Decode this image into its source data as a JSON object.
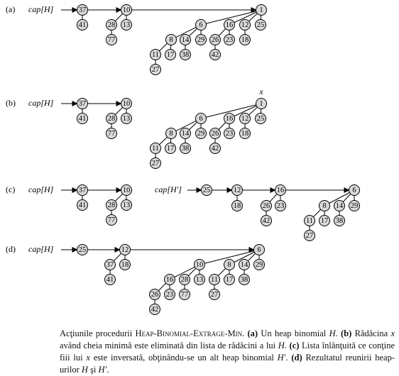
{
  "panels": [
    {
      "label": "(a)",
      "pointers": [
        "cap[H]"
      ],
      "keys": [
        37,
        41,
        10,
        28,
        13,
        77,
        1,
        6,
        16,
        12,
        25,
        8,
        14,
        29,
        26,
        23,
        18,
        11,
        17,
        38,
        42,
        27
      ]
    },
    {
      "label": "(b)",
      "pointers": [
        "cap[H]"
      ],
      "marker": "x",
      "keys": [
        37,
        41,
        10,
        28,
        13,
        77,
        1,
        6,
        16,
        12,
        25,
        8,
        14,
        29,
        26,
        23,
        18,
        11,
        17,
        38,
        42,
        27
      ]
    },
    {
      "label": "(c)",
      "pointers": [
        "cap[H]",
        "cap[H′]"
      ],
      "keys": [
        37,
        41,
        10,
        28,
        13,
        77,
        25,
        12,
        18,
        16,
        26,
        23,
        42,
        6,
        8,
        14,
        29,
        11,
        17,
        38,
        27
      ]
    },
    {
      "label": "(d)",
      "pointers": [
        "cap[H]"
      ],
      "keys": [
        25,
        12,
        6,
        37,
        18,
        41,
        10,
        8,
        14,
        29,
        16,
        28,
        13,
        26,
        23,
        77,
        42,
        11,
        17,
        38,
        27
      ]
    }
  ],
  "caption": [
    "Acţiunile procedurii ",
    "Heap-Binomial-Extrage-Min",
    ". ",
    "(a)",
    " Un heap binomial ",
    "H",
    ". ",
    "(b)",
    " Rădăcina ",
    "x",
    " având cheia minimă este eliminată din lista de rădăcini a lui ",
    "H",
    ". ",
    "(c)",
    " Lista înlănţuită ce conţine fiii lui ",
    "x",
    " este inversată, obţinându-se un alt heap binomial ",
    "H′",
    ". ",
    "(d)",
    " Rezultatul reunirii heap-urilor ",
    "H",
    " şi ",
    "H′",
    "."
  ]
}
